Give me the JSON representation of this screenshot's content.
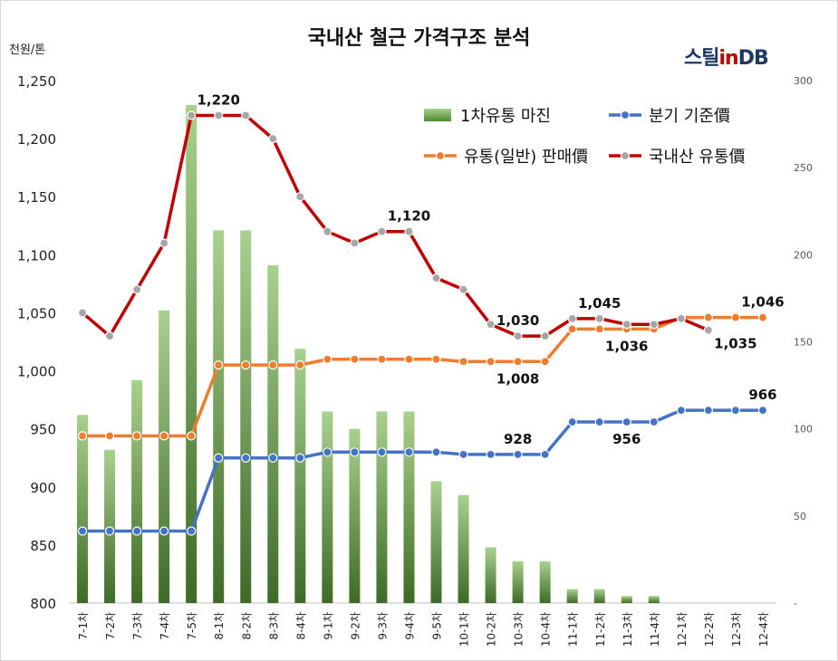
{
  "title": "국내산 철근 가격구조 분석",
  "unit_label": "천원/톤",
  "logo": {
    "part1": "스틸",
    "part2": "in",
    "part3": "DB"
  },
  "chart_data": {
    "type": "bar",
    "categories": [
      "7-1차",
      "7-2차",
      "7-3차",
      "7-4차",
      "7-5차",
      "8-1차",
      "8-2차",
      "8-3차",
      "8-4차",
      "9-1차",
      "9-2차",
      "9-3차",
      "9-4차",
      "9-5차",
      "10-1차",
      "10-2차",
      "10-3차",
      "10-4차",
      "11-1차",
      "11-2차",
      "11-3차",
      "11-4차",
      "12-1차",
      "12-2차",
      "12-3차",
      "12-4차"
    ],
    "left_axis": {
      "ylim": [
        800,
        1250
      ],
      "ticks": [
        "800",
        "850",
        "900",
        "950",
        "1,000",
        "1,050",
        "1,100",
        "1,150",
        "1,200",
        "1,250"
      ]
    },
    "right_axis": {
      "ylim": [
        0,
        300
      ],
      "ticks": [
        "-",
        "50",
        "100",
        "150",
        "200",
        "250",
        "300"
      ]
    },
    "legend": {
      "position": "top-right",
      "items": [
        {
          "label": "1차유통 마진",
          "kind": "bar",
          "color": "#70ad47"
        },
        {
          "label": "분기 기준價",
          "kind": "line",
          "color": "#4472c4"
        },
        {
          "label": "유통(일반) 판매價",
          "kind": "line",
          "color": "#ed7d31"
        },
        {
          "label": "국내산 유통價",
          "kind": "line",
          "color": "#c00000"
        }
      ]
    },
    "series": [
      {
        "name": "1차유통 마진",
        "type": "bar",
        "axis": "right",
        "color": "#70ad47",
        "values": [
          108,
          88,
          128,
          168,
          286,
          214,
          214,
          194,
          146,
          110,
          100,
          110,
          110,
          70,
          62,
          32,
          24,
          24,
          8,
          8,
          4,
          4,
          0,
          0,
          0,
          0
        ]
      },
      {
        "name": "분기 기준價",
        "type": "line",
        "axis": "left",
        "color": "#4472c4",
        "marker": "#4472c4",
        "values": [
          862,
          862,
          862,
          862,
          862,
          925,
          925,
          925,
          925,
          930,
          930,
          930,
          930,
          930,
          928,
          928,
          928,
          928,
          956,
          956,
          956,
          956,
          966,
          966,
          966,
          966
        ]
      },
      {
        "name": "유통(일반) 판매價",
        "type": "line",
        "axis": "left",
        "color": "#ed7d31",
        "marker": "#ed7d31",
        "values": [
          944,
          944,
          944,
          944,
          944,
          1005,
          1005,
          1005,
          1005,
          1010,
          1010,
          1010,
          1010,
          1010,
          1008,
          1008,
          1008,
          1008,
          1036,
          1036,
          1036,
          1036,
          1046,
          1046,
          1046,
          1046
        ]
      },
      {
        "name": "국내산 유통價",
        "type": "line",
        "axis": "left",
        "color": "#c00000",
        "marker": "#a6a6a6",
        "values": [
          1050,
          1030,
          1070,
          1110,
          1220,
          1220,
          1220,
          1200,
          1150,
          1120,
          1110,
          1120,
          1120,
          1080,
          1070,
          1040,
          1030,
          1030,
          1045,
          1045,
          1040,
          1040,
          1045,
          1035,
          null,
          null
        ]
      }
    ],
    "annotations": [
      {
        "series": 3,
        "index": 5,
        "text": "1,220",
        "pos": "above"
      },
      {
        "series": 3,
        "index": 12,
        "text": "1,120",
        "pos": "above"
      },
      {
        "series": 3,
        "index": 16,
        "text": "1,030",
        "pos": "above"
      },
      {
        "series": 3,
        "index": 19,
        "text": "1,045",
        "pos": "above"
      },
      {
        "series": 2,
        "index": 20,
        "text": "1,036",
        "pos": "below"
      },
      {
        "series": 3,
        "index": 23,
        "text": "1,035",
        "pos": "below-right"
      },
      {
        "series": 2,
        "index": 25,
        "text": "1,046",
        "pos": "above"
      },
      {
        "series": 2,
        "index": 16,
        "text": "1,008",
        "pos": "below"
      },
      {
        "series": 1,
        "index": 16,
        "text": "928",
        "pos": "above"
      },
      {
        "series": 1,
        "index": 20,
        "text": "956",
        "pos": "below"
      },
      {
        "series": 1,
        "index": 25,
        "text": "966",
        "pos": "above"
      }
    ]
  }
}
